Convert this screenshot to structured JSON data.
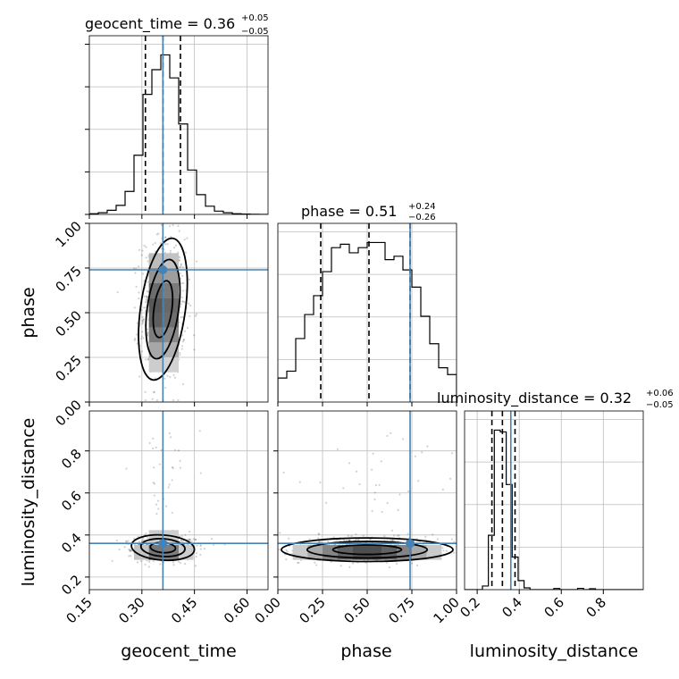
{
  "chart_data": {
    "type": "corner",
    "truth_color": "#4682b4",
    "parameters": [
      {
        "name": "geocent_time",
        "range": [
          0.15,
          0.66
        ],
        "ticks": [
          "0.15",
          "0.30",
          "0.45",
          "0.60"
        ],
        "tick_values": [
          0.15,
          0.3,
          0.45,
          0.6
        ],
        "truth": 0.36,
        "quantiles": [
          0.31,
          0.36,
          0.41
        ],
        "title": "geocent_time = 0.36",
        "title_plus": "+0.05",
        "title_minus": "−0.05",
        "hist_edges_start": 0.15,
        "hist_bin_width": 0.0255,
        "hist_counts": [
          0.4,
          1.0,
          2.5,
          5.5,
          14.0,
          36.0,
          73.0,
          88.0,
          97.0,
          83.0,
          55.0,
          27.0,
          12.0,
          5.0,
          2.0,
          1.0,
          0.4,
          0.2,
          0.1,
          0.0
        ]
      },
      {
        "name": "phase",
        "range": [
          0.0,
          1.0
        ],
        "ticks": [
          "0.00",
          "0.25",
          "0.50",
          "0.75",
          "1.00"
        ],
        "tick_values": [
          0.0,
          0.25,
          0.5,
          0.75,
          1.0
        ],
        "truth": 0.74,
        "quantiles": [
          0.24,
          0.51,
          0.74
        ],
        "title": "phase = 0.51",
        "title_plus": "+0.24",
        "title_minus": "−0.26",
        "hist_edges_start": 0.0,
        "hist_bin_width": 0.05,
        "hist_counts": [
          14,
          18,
          37,
          51,
          62,
          76,
          90,
          92,
          87,
          90,
          93,
          93,
          83,
          85,
          77,
          67,
          50,
          34,
          20,
          16
        ]
      },
      {
        "name": "luminosity_distance",
        "range": [
          0.14,
          0.99
        ],
        "ticks": [
          "0.2",
          "0.4",
          "0.6",
          "0.8"
        ],
        "tick_values": [
          0.2,
          0.4,
          0.6,
          0.8
        ],
        "truth": 0.36,
        "quantiles": [
          0.27,
          0.32,
          0.38
        ],
        "title": "luminosity_distance = 0.32",
        "title_plus": "+0.06",
        "title_minus": "−0.05",
        "hist_edges_start": 0.14,
        "hist_bin_width": 0.0283,
        "hist_counts": [
          0,
          0,
          0,
          2,
          30,
          88,
          87,
          58,
          18,
          5,
          1,
          0,
          0,
          0,
          0,
          0.6,
          0,
          0,
          0,
          0.7,
          0,
          0.5,
          0,
          0,
          0,
          0,
          0,
          0,
          0,
          0
        ]
      }
    ],
    "axis_labels": {
      "x": [
        "geocent_time",
        "phase",
        "luminosity_distance"
      ],
      "y": [
        "phase",
        "luminosity_distance"
      ]
    },
    "joint_peaks": {
      "geocent_time_phase": {
        "x": 0.36,
        "y": 0.52
      },
      "geocent_time_luminosity_distance": {
        "x": 0.36,
        "y": 0.34
      },
      "phase_luminosity_distance": {
        "x": 0.5,
        "y": 0.33
      }
    },
    "grid": true,
    "legend": "none"
  }
}
